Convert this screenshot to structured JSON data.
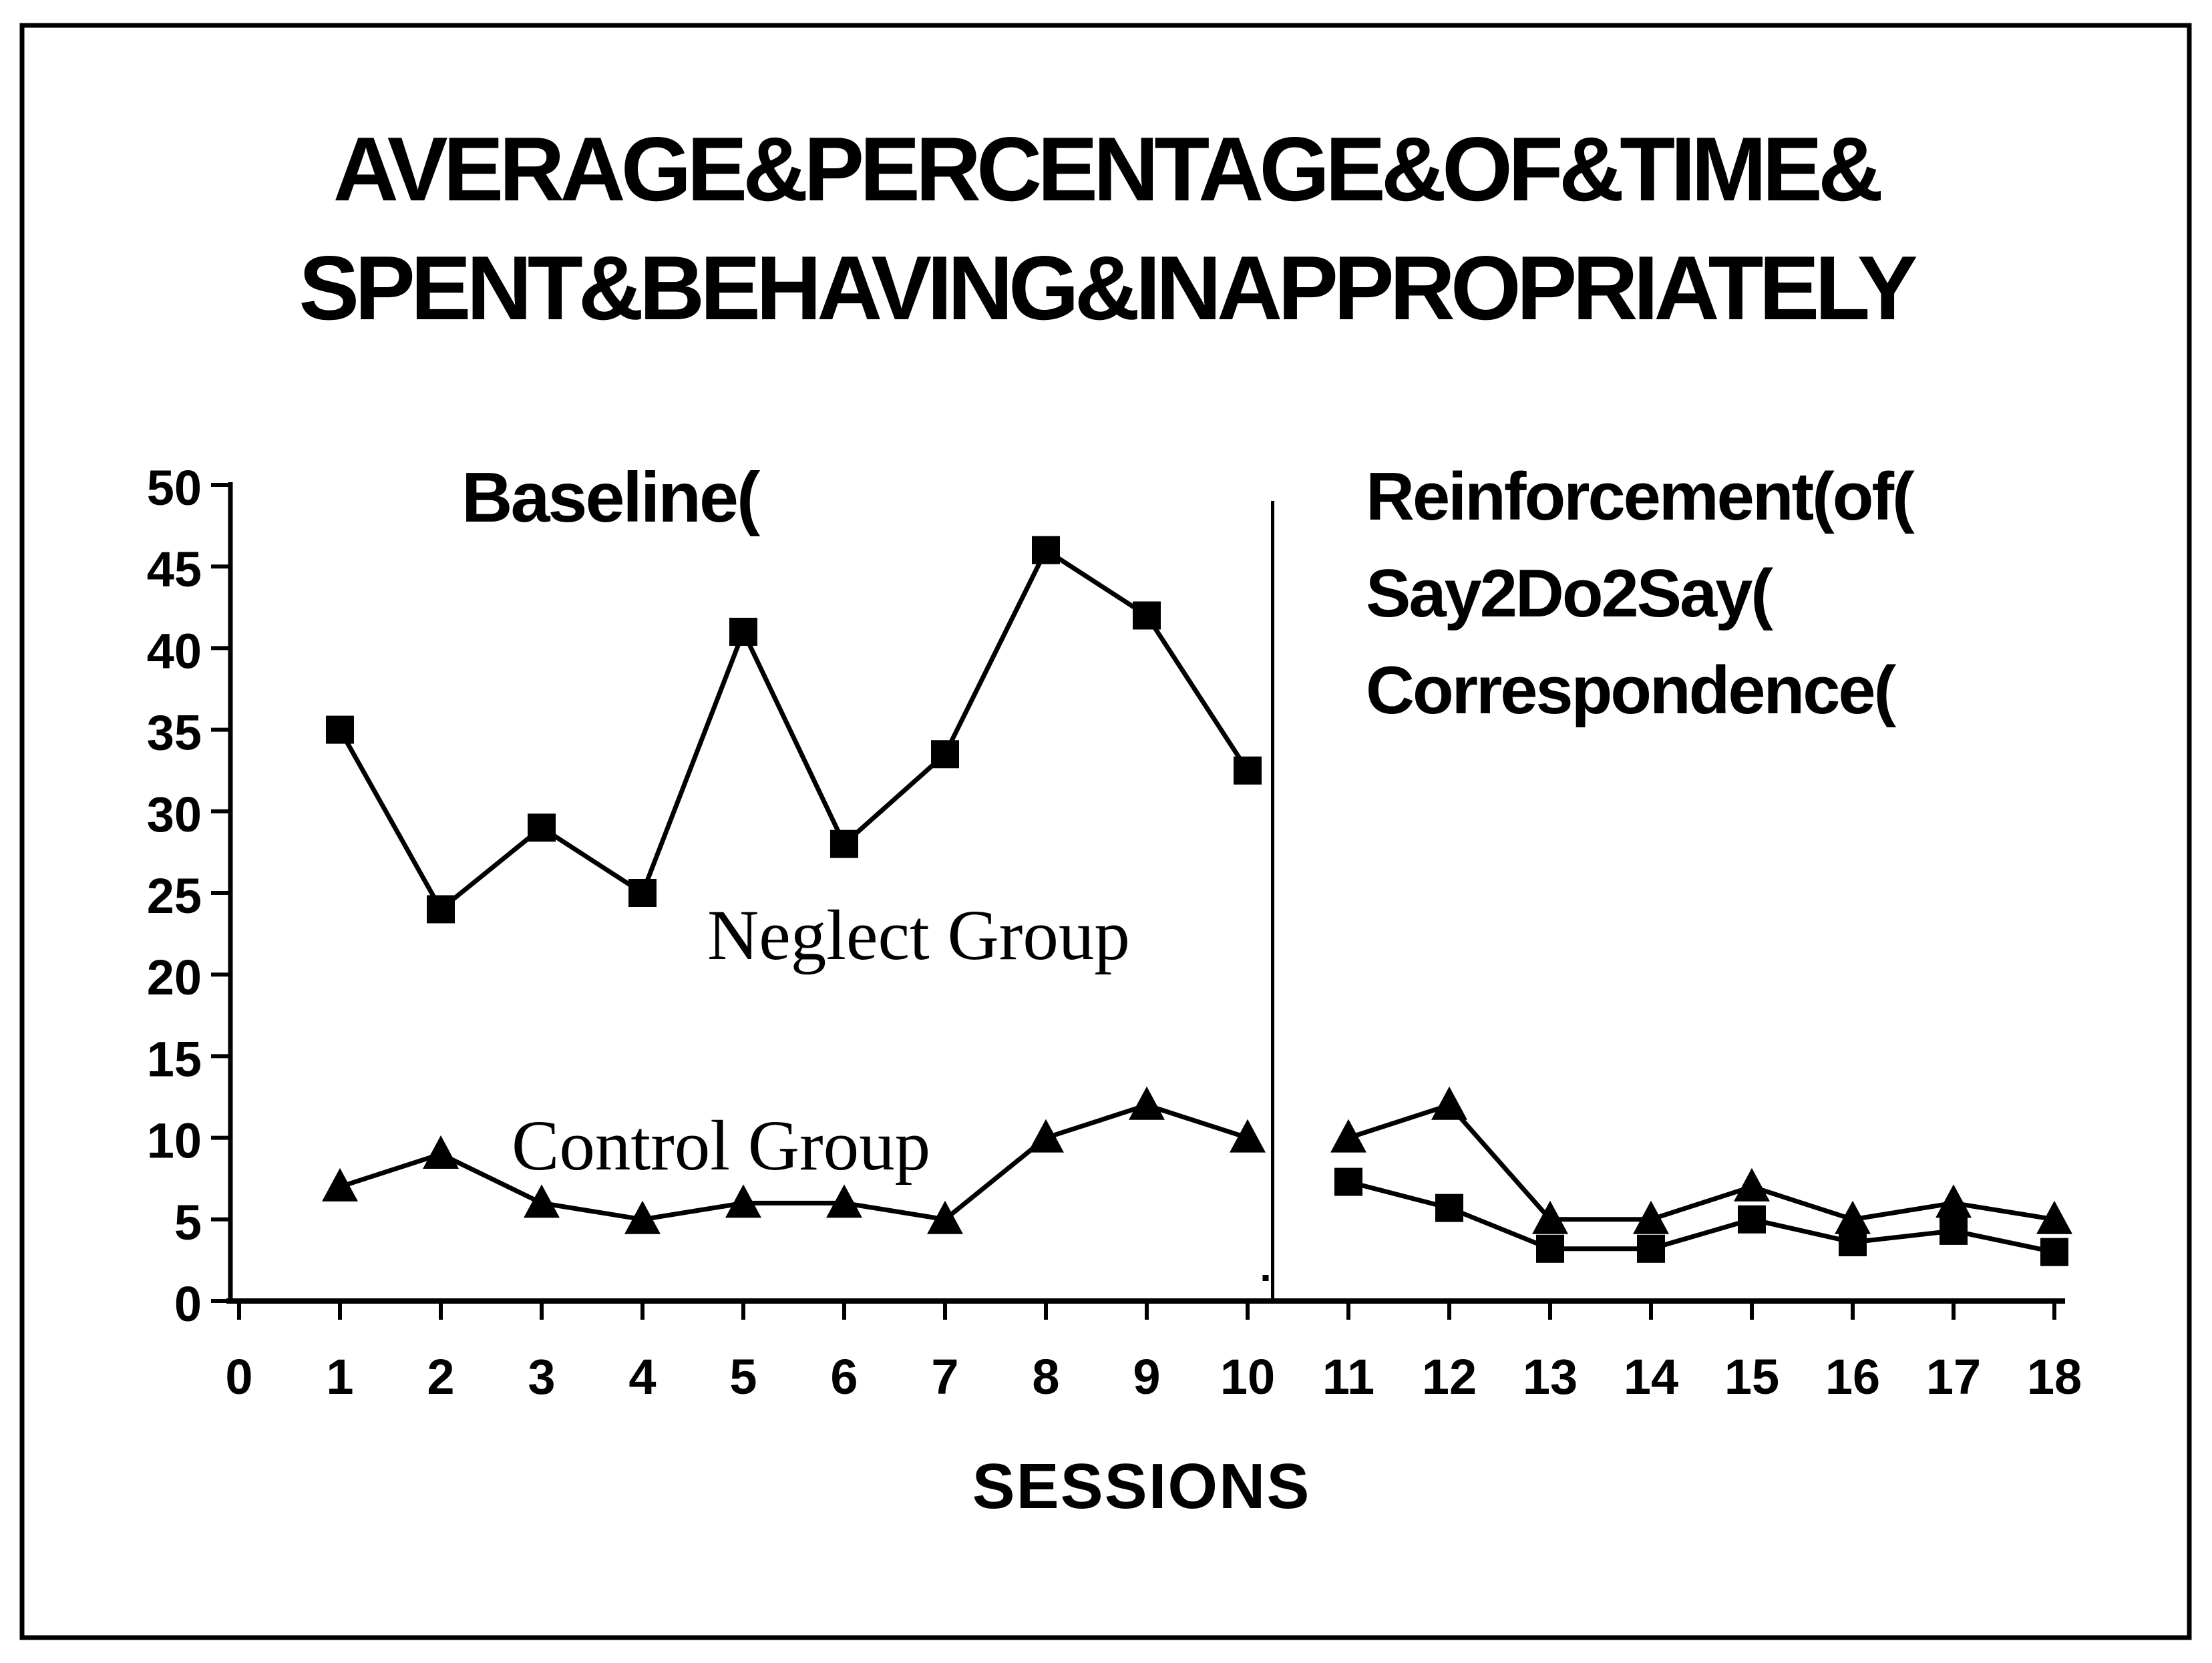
{
  "title": {
    "line1": "AVERAGE&PERCENTAGE&OF&TIME&",
    "line2": "SPENT&BEHAVING&INAPPROPRIATELY"
  },
  "labels": {
    "baseline_phase": "Baseline(",
    "reinforcement_line1": "Reinforcement(of(",
    "reinforcement_line2": "Say2Do2Say(",
    "reinforcement_line3": "Correspondence(",
    "neglect_group": "Neglect Group",
    "control_group": "Control Group",
    "x_axis_title": "SESSIONS"
  },
  "chart_data": {
    "type": "line",
    "title": "AVERAGE&PERCENTAGE&OF&TIME& SPENT&BEHAVING&INAPPROPRIATELY",
    "xlabel": "SESSIONS",
    "ylabel": "",
    "ylim": [
      0,
      50
    ],
    "ytick_step": 5,
    "ytick_labels": [
      "0",
      "5",
      "10",
      "15",
      "20",
      "25",
      "30",
      "35",
      "40",
      "45",
      "50"
    ],
    "xtick_labels": [
      "0",
      "1",
      "2",
      "3",
      "4",
      "5",
      "6",
      "7",
      "8",
      "9",
      "10",
      "11",
      "12",
      "13",
      "14",
      "15",
      "16",
      "17",
      "18"
    ],
    "x": [
      1,
      2,
      3,
      4,
      5,
      6,
      7,
      8,
      9,
      10,
      11,
      12,
      13,
      14,
      15,
      16,
      17,
      18
    ],
    "series": [
      {
        "name": "Neglect Group",
        "marker": "square",
        "values": [
          35,
          24,
          29,
          25,
          41,
          28,
          33.5,
          46,
          42,
          32.5,
          7.3,
          5.7,
          3.2,
          3.2,
          5,
          3.6,
          4.3,
          3
        ]
      },
      {
        "name": "Control Group",
        "marker": "triangle",
        "values": [
          7,
          9,
          6,
          5,
          6,
          6,
          5,
          10,
          12,
          10,
          10,
          12,
          5,
          5,
          7,
          5,
          6,
          5
        ]
      }
    ],
    "phases": [
      {
        "label": "Baseline(",
        "sessions": [
          1,
          10
        ]
      },
      {
        "label": "Reinforcement(of( Say2Do2Say( Correspondence(",
        "sessions": [
          11,
          18
        ]
      }
    ],
    "phase_divider_after_session": 10,
    "grid": false,
    "legend_position": "inline-annotations",
    "colors": {
      "foreground": "#000000",
      "background": "#ffffff"
    }
  }
}
